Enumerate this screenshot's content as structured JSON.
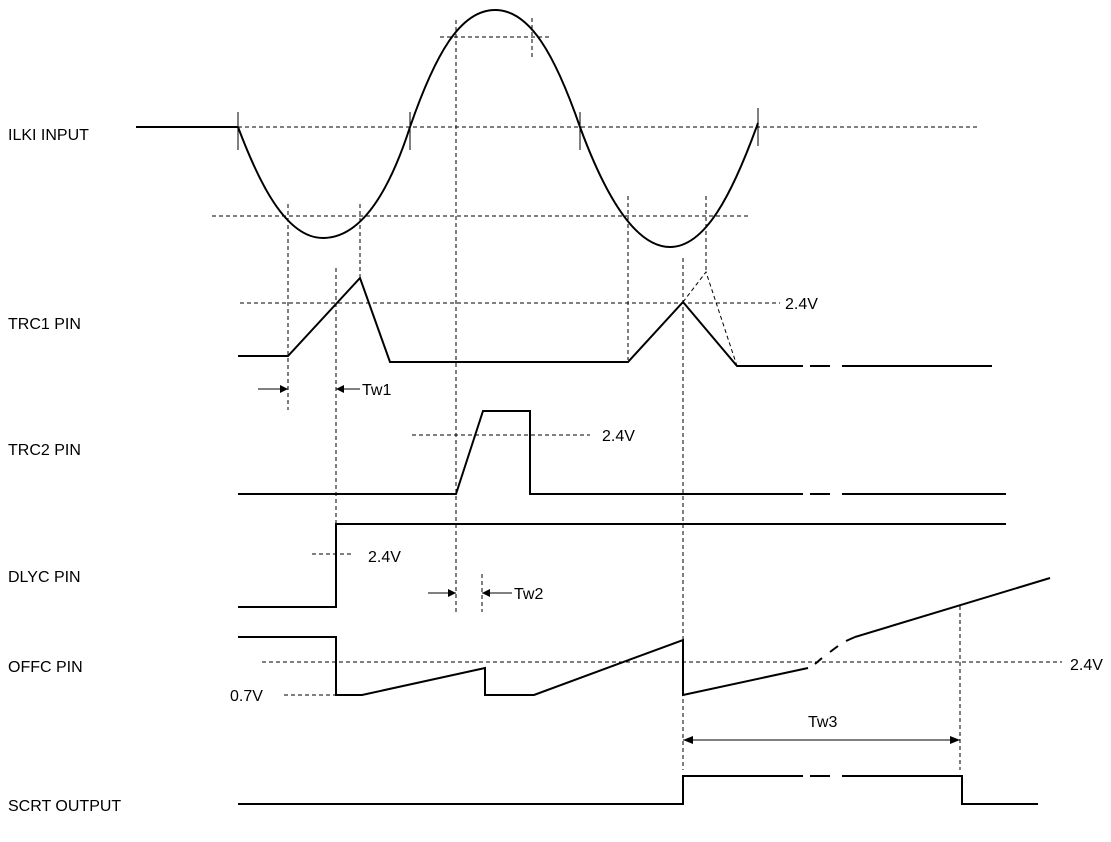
{
  "diagram": {
    "signals": {
      "ilki": "ILKI INPUT",
      "trc1": "TRC1 PIN",
      "trc2": "TRC2 PIN",
      "dlyc": "DLYC PIN",
      "offc": "OFFC PIN",
      "scrt": "SCRT OUTPUT"
    },
    "thresholds": {
      "trc1": "2.4V",
      "trc2": "2.4V",
      "dlyc": "2.4V",
      "offc_high": "2.4V",
      "offc_low": "0.7V"
    },
    "timings": {
      "tw1": "Tw1",
      "tw2": "Tw2",
      "tw3": "Tw3"
    }
  }
}
